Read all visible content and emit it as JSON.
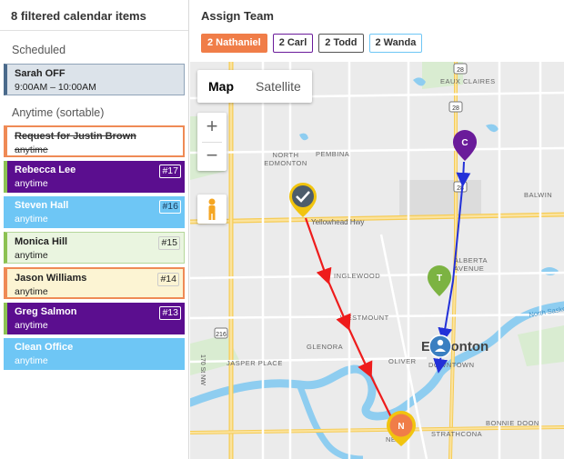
{
  "left_panel": {
    "header": "8 filtered calendar items",
    "scheduled_label": "Scheduled",
    "anytime_label": "Anytime (sortable)",
    "scheduled_items": [
      {
        "title": "Sarah OFF",
        "sub": "9:00AM – 10:00AM"
      }
    ],
    "anytime_items": [
      {
        "title": "Request for Justin Brown",
        "sub": "anytime",
        "num": ""
      },
      {
        "title": "Rebecca Lee",
        "sub": "anytime",
        "num": "#17"
      },
      {
        "title": "Steven Hall",
        "sub": "anytime",
        "num": "#16"
      },
      {
        "title": "Monica Hill",
        "sub": "anytime",
        "num": "#15"
      },
      {
        "title": "Jason Williams",
        "sub": "anytime",
        "num": "#14"
      },
      {
        "title": "Greg Salmon",
        "sub": "anytime",
        "num": "#13"
      },
      {
        "title": "Clean Office",
        "sub": "anytime",
        "num": ""
      }
    ]
  },
  "assign": {
    "title": "Assign Team",
    "team": [
      {
        "label": "2 Nathaniel",
        "color": "#f07d48"
      },
      {
        "label": "2 Carl",
        "color": "#6a1b9a"
      },
      {
        "label": "2 Todd",
        "color": "#555555"
      },
      {
        "label": "2 Wanda",
        "color": "#6ec6f5"
      }
    ]
  },
  "map": {
    "type_map": "Map",
    "type_satellite": "Satellite",
    "zoom_in": "+",
    "zoom_out": "−",
    "labels": {
      "eaux_claires": "EAUX CLAIRES",
      "north_edmonton_1": "NORTH",
      "north_edmonton_2": "EDMONTON",
      "pembina": "PEMBINA",
      "balwin": "BALWIN",
      "yellowhead": "Yellowhead Hwy",
      "inglewood": "INGLEWOOD",
      "alberta_avenue_1": "ALBERTA",
      "alberta_avenue_2": "AVENUE",
      "westmount": "WESTMOUNT",
      "glenora": "GLENORA",
      "edmonton": "Edmonton",
      "downtown": "DOWNTOWN",
      "jasper_place": "JASPER PLACE",
      "oliver": "OLIVER",
      "north_saskatchewan": "North Saske",
      "bonnie_doon": "BONNIE DOON",
      "strathcona": "STRATHCONA",
      "garneau": "NEAU",
      "hwy_216": "216",
      "hwy_28a": "28",
      "hwy_28b": "28",
      "hwy_28c": "28",
      "st_170": "170 St NW"
    },
    "markers": {
      "c": "C",
      "t": "T",
      "n": "N"
    },
    "colors": {
      "carl": "#6a1b9a",
      "todd": "#7cb342",
      "nathaniel": "#f07d48",
      "wanda": "#3a7fc1",
      "route_red": "#ee1c1c",
      "route_blue": "#2230d8",
      "river": "#8ecdf0"
    }
  }
}
